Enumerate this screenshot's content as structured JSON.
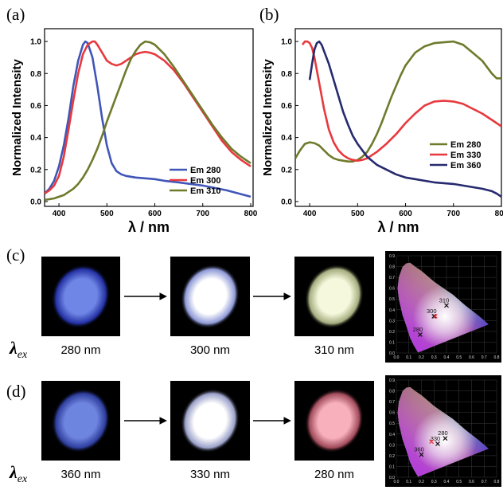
{
  "chart_data": [
    {
      "type": "line",
      "panel": "(a)",
      "xlabel": "λ / nm",
      "ylabel": "Normalized Intensity",
      "xlim": [
        370,
        805
      ],
      "ylim": [
        -0.03,
        1.08
      ],
      "xticks": [
        "400",
        "500",
        "600",
        "700",
        "800"
      ],
      "yticks": [
        "0.0",
        "0.2",
        "0.4",
        "0.6",
        "0.8",
        "1.0"
      ],
      "legend_position": "lower-right",
      "series": [
        {
          "name": "Em 280",
          "color": "#3f56b8",
          "x": [
            370,
            380,
            390,
            400,
            410,
            420,
            430,
            440,
            450,
            455,
            460,
            470,
            480,
            490,
            500,
            510,
            520,
            530,
            540,
            550,
            560,
            580,
            600,
            620,
            650,
            700,
            750,
            800
          ],
          "y": [
            0.05,
            0.08,
            0.13,
            0.22,
            0.35,
            0.52,
            0.72,
            0.88,
            0.98,
            1.0,
            0.99,
            0.9,
            0.72,
            0.52,
            0.35,
            0.24,
            0.19,
            0.17,
            0.16,
            0.155,
            0.15,
            0.145,
            0.14,
            0.13,
            0.12,
            0.1,
            0.07,
            0.03
          ]
        },
        {
          "name": "Em 300",
          "color": "#e8383d",
          "x": [
            370,
            380,
            390,
            400,
            410,
            420,
            430,
            440,
            450,
            460,
            470,
            475,
            480,
            490,
            500,
            510,
            520,
            530,
            540,
            550,
            560,
            570,
            580,
            590,
            600,
            620,
            640,
            660,
            680,
            700,
            720,
            740,
            760,
            780,
            800
          ],
          "y": [
            0.05,
            0.07,
            0.1,
            0.16,
            0.28,
            0.45,
            0.63,
            0.8,
            0.92,
            0.98,
            1.0,
            1.0,
            0.98,
            0.93,
            0.88,
            0.86,
            0.85,
            0.86,
            0.88,
            0.9,
            0.92,
            0.93,
            0.935,
            0.93,
            0.92,
            0.88,
            0.82,
            0.74,
            0.65,
            0.56,
            0.47,
            0.38,
            0.31,
            0.26,
            0.22
          ]
        },
        {
          "name": "Em 310",
          "color": "#6f7a2c",
          "x": [
            370,
            380,
            390,
            400,
            410,
            420,
            430,
            440,
            450,
            460,
            470,
            480,
            490,
            500,
            510,
            520,
            530,
            540,
            550,
            560,
            570,
            580,
            590,
            600,
            620,
            640,
            660,
            680,
            700,
            720,
            740,
            760,
            780,
            800
          ],
          "y": [
            0.01,
            0.015,
            0.02,
            0.03,
            0.04,
            0.06,
            0.08,
            0.11,
            0.15,
            0.2,
            0.26,
            0.33,
            0.41,
            0.5,
            0.58,
            0.66,
            0.74,
            0.82,
            0.89,
            0.94,
            0.98,
            1.0,
            0.995,
            0.98,
            0.92,
            0.84,
            0.75,
            0.66,
            0.57,
            0.48,
            0.4,
            0.33,
            0.28,
            0.24
          ]
        }
      ]
    },
    {
      "type": "line",
      "panel": "(b)",
      "xlabel": "λ / nm",
      "ylabel": "Normalized Intensity",
      "xlim": [
        370,
        800
      ],
      "ylim": [
        -0.03,
        1.08
      ],
      "xticks": [
        "400",
        "500",
        "600",
        "700",
        "800"
      ],
      "yticks": [
        "0.0",
        "0.2",
        "0.4",
        "0.6",
        "0.8",
        "1.0"
      ],
      "legend_position": "right",
      "series": [
        {
          "name": "Em 280",
          "color": "#6f7a2c",
          "x": [
            370,
            380,
            390,
            400,
            410,
            420,
            430,
            440,
            450,
            460,
            470,
            480,
            490,
            500,
            510,
            520,
            530,
            540,
            550,
            560,
            570,
            580,
            590,
            600,
            620,
            640,
            660,
            680,
            700,
            720,
            740,
            760,
            780,
            790,
            800
          ],
          "y": [
            0.27,
            0.32,
            0.36,
            0.37,
            0.365,
            0.35,
            0.32,
            0.29,
            0.27,
            0.26,
            0.255,
            0.25,
            0.25,
            0.26,
            0.28,
            0.31,
            0.36,
            0.42,
            0.49,
            0.57,
            0.65,
            0.72,
            0.79,
            0.85,
            0.93,
            0.97,
            0.99,
            0.995,
            1.0,
            0.98,
            0.93,
            0.88,
            0.8,
            0.77,
            0.77
          ]
        },
        {
          "name": "Em 330",
          "color": "#e8383d",
          "x": [
            385,
            390,
            395,
            400,
            405,
            410,
            420,
            430,
            440,
            450,
            460,
            470,
            480,
            490,
            500,
            510,
            520,
            530,
            540,
            560,
            580,
            600,
            620,
            640,
            660,
            680,
            700,
            720,
            740,
            760,
            780,
            800
          ],
          "y": [
            0.98,
            1.0,
            1.0,
            0.99,
            0.96,
            0.9,
            0.74,
            0.58,
            0.45,
            0.37,
            0.32,
            0.29,
            0.27,
            0.26,
            0.255,
            0.26,
            0.27,
            0.29,
            0.31,
            0.36,
            0.42,
            0.49,
            0.55,
            0.6,
            0.625,
            0.63,
            0.625,
            0.61,
            0.58,
            0.55,
            0.51,
            0.47
          ]
        },
        {
          "name": "Em 360",
          "color": "#262a6e",
          "x": [
            400,
            405,
            410,
            415,
            420,
            425,
            430,
            440,
            450,
            460,
            470,
            480,
            490,
            500,
            510,
            520,
            540,
            560,
            580,
            600,
            620,
            640,
            660,
            680,
            700,
            720,
            740,
            760,
            780,
            790,
            795,
            800
          ],
          "y": [
            0.76,
            0.86,
            0.95,
            0.99,
            1.0,
            0.98,
            0.94,
            0.86,
            0.76,
            0.66,
            0.56,
            0.48,
            0.41,
            0.36,
            0.32,
            0.28,
            0.23,
            0.2,
            0.17,
            0.15,
            0.14,
            0.13,
            0.12,
            0.115,
            0.11,
            0.1,
            0.09,
            0.08,
            0.065,
            0.05,
            0.04,
            0.03
          ]
        }
      ]
    }
  ],
  "panel_c": {
    "label": "(c)",
    "lambda_label": "λ",
    "lambda_sub": "ex",
    "spots": [
      {
        "caption": "280 nm",
        "core": "#6f86e6",
        "edge": "#2431a3"
      },
      {
        "caption": "300 nm",
        "core": "#ffffff",
        "edge": "#8e99d6"
      },
      {
        "caption": "310 nm",
        "core": "#f5f8dc",
        "edge": "#a5ad7f"
      }
    ],
    "cie": {
      "xticks": [
        "0.0",
        "0.1",
        "0.2",
        "0.3",
        "0.4",
        "0.5",
        "0.6",
        "0.7",
        "0.8"
      ],
      "yticks": [
        "0.0",
        "0.1",
        "0.2",
        "0.3",
        "0.4",
        "0.5",
        "0.6",
        "0.7",
        "0.8",
        "0.9"
      ],
      "points": [
        {
          "label": "280",
          "x": 0.19,
          "y": 0.17,
          "color": "#111111"
        },
        {
          "label": "300",
          "x": 0.3,
          "y": 0.34,
          "color": "#111111"
        },
        {
          "label": "310",
          "x": 0.4,
          "y": 0.44,
          "color": "#111111"
        },
        {
          "label": "",
          "x": 0.31,
          "y": 0.34,
          "color": "#e8383d"
        }
      ]
    }
  },
  "panel_d": {
    "label": "(d)",
    "lambda_label": "λ",
    "lambda_sub": "ex",
    "spots": [
      {
        "caption": "360 nm",
        "core": "#6e85e0",
        "edge": "#2e3d9c"
      },
      {
        "caption": "330 nm",
        "core": "#ffffff",
        "edge": "#9aa0c8"
      },
      {
        "caption": "280 nm",
        "core": "#f7b0bc",
        "edge": "#a04a5a"
      }
    ],
    "cie": {
      "xticks": [
        "0.0",
        "0.1",
        "0.2",
        "0.3",
        "0.4",
        "0.5",
        "0.6",
        "0.7",
        "0.8"
      ],
      "yticks": [
        "0.0",
        "0.1",
        "0.2",
        "0.3",
        "0.4",
        "0.5",
        "0.6",
        "0.7",
        "0.8",
        "0.9"
      ],
      "points": [
        {
          "label": "360",
          "x": 0.2,
          "y": 0.21,
          "color": "#111111"
        },
        {
          "label": "330",
          "x": 0.33,
          "y": 0.31,
          "color": "#111111"
        },
        {
          "label": "280",
          "x": 0.39,
          "y": 0.36,
          "color": "#111111"
        },
        {
          "label": "",
          "x": 0.28,
          "y": 0.33,
          "color": "#e8383d"
        }
      ]
    }
  }
}
